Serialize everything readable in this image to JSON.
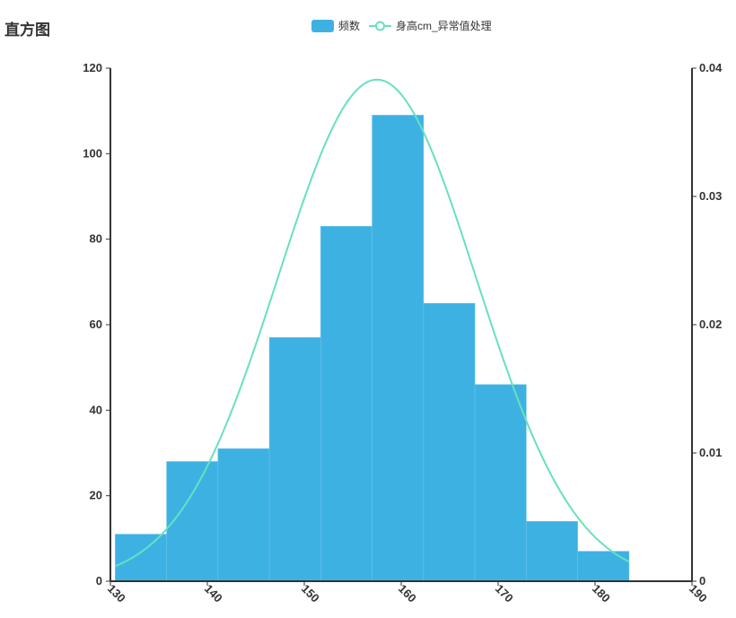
{
  "chart_data": {
    "type": "bar",
    "title": "直方图",
    "series": [
      {
        "name": "频数",
        "type": "bar",
        "color": "#3eb1e3",
        "x_start": [
          130.5,
          135.8,
          141.1,
          146.4,
          151.7,
          157.0,
          162.3,
          167.6,
          172.9,
          178.2
        ],
        "x_end": [
          135.8,
          141.1,
          146.4,
          151.7,
          157.0,
          162.3,
          167.6,
          172.9,
          178.2,
          183.5
        ],
        "values": [
          11,
          28,
          31,
          57,
          83,
          109,
          65,
          46,
          14,
          7
        ]
      },
      {
        "name": "身高cm_异常值处理",
        "type": "line",
        "axis": "right",
        "color": "#67e0c1",
        "mean": 157.5,
        "std": 10.2,
        "x_range": [
          130.5,
          183.5
        ]
      }
    ],
    "x_axis": {
      "min": 130,
      "max": 190,
      "tick_labels": [
        "130",
        "140",
        "150",
        "160",
        "170",
        "180",
        "190"
      ]
    },
    "y_axis_left": {
      "min": 0,
      "max": 120,
      "tick_labels": [
        "0",
        "20",
        "40",
        "60",
        "80",
        "100",
        "120"
      ]
    },
    "y_axis_right": {
      "min": 0,
      "max": 0.04,
      "tick_labels": [
        "0",
        "0.01",
        "0.02",
        "0.03",
        "0.04"
      ]
    },
    "legend": {
      "position": "top-center"
    },
    "grid": false
  }
}
